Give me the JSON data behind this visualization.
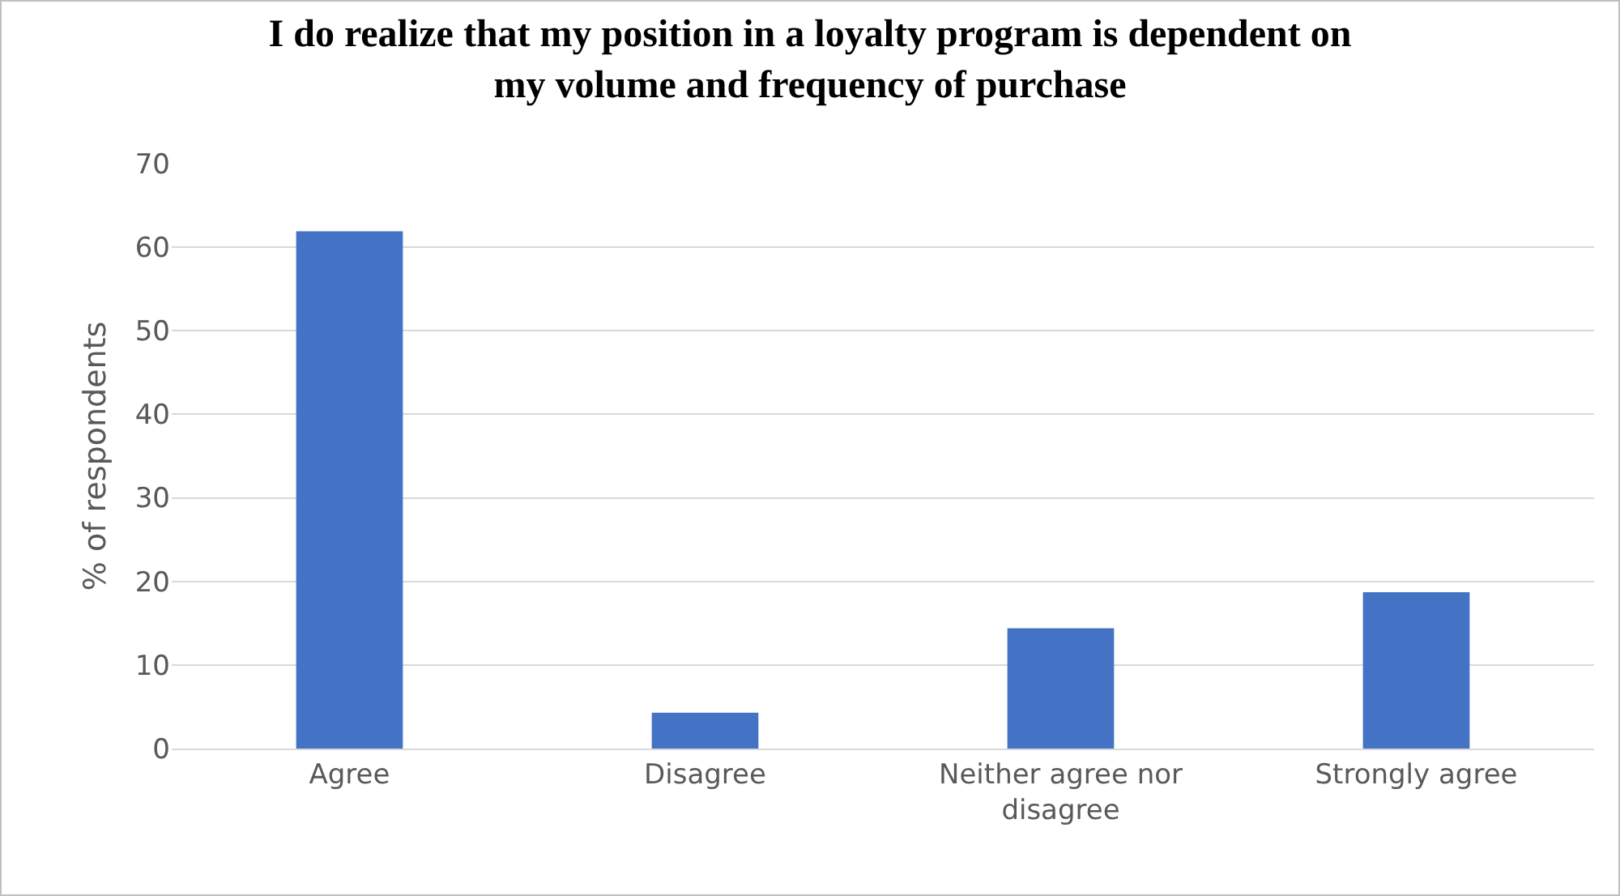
{
  "chart_data": {
    "type": "bar",
    "title": "I do realize that my position in a loyalty program is dependent on\nmy volume and frequency of purchase",
    "ylabel": "% of respondents",
    "categories": [
      "Agree",
      "Disagree",
      "Neither agree nor\ndisagree",
      "Strongly agree"
    ],
    "values": [
      61.9,
      4.3,
      14.4,
      18.7
    ],
    "color": "#4472c4",
    "ylim": [
      0,
      70
    ],
    "yticks": [
      0,
      10,
      20,
      30,
      40,
      50,
      60,
      70
    ],
    "grid": "y"
  }
}
